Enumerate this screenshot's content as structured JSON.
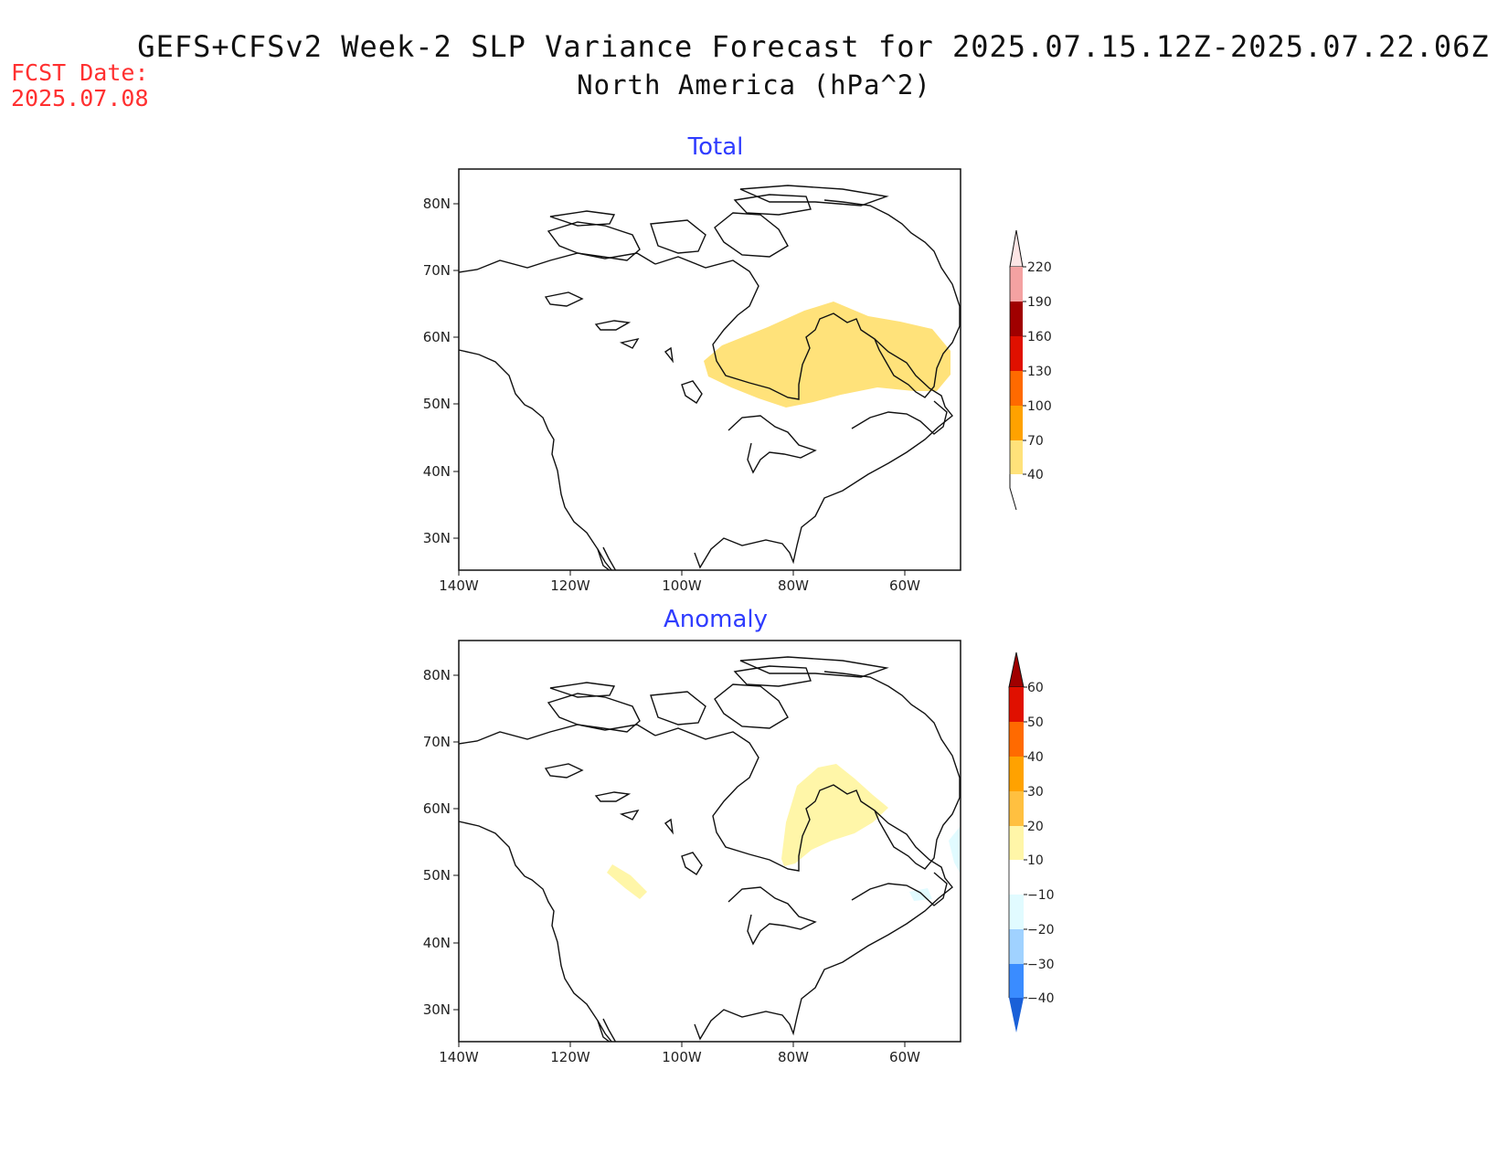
{
  "title": "GEFS+CFSv2 Week-2 SLP Variance Forecast for 2025.07.15.12Z-2025.07.22.06Z",
  "subtitle": "North America (hPa^2)",
  "fcst_label": "FCST Date:",
  "fcst_date": "2025.07.08",
  "panels": [
    {
      "title": "Total",
      "lat_ticks": [
        "80N",
        "70N",
        "60N",
        "50N",
        "40N",
        "30N"
      ],
      "lon_ticks": [
        "140W",
        "120W",
        "100W",
        "80W",
        "60W"
      ],
      "colorbar": {
        "labels": [
          "220",
          "190",
          "160",
          "130",
          "100",
          "70",
          "40"
        ],
        "colors": [
          "#fde5e5",
          "#f4a2a2",
          "#a00000",
          "#e01000",
          "#ff6a00",
          "#ffa200",
          "#ffe27a"
        ]
      },
      "shaded_region": "yellow 40-70 hPa^2 over Hudson Bay / Quebec / Labrador"
    },
    {
      "title": "Anomaly",
      "lat_ticks": [
        "80N",
        "70N",
        "60N",
        "50N",
        "40N",
        "30N"
      ],
      "lon_ticks": [
        "140W",
        "120W",
        "100W",
        "80W",
        "60W"
      ],
      "colorbar": {
        "labels": [
          "60",
          "50",
          "40",
          "30",
          "20",
          "10",
          "−10",
          "−20",
          "−30",
          "−40"
        ],
        "colors": [
          "#a00000",
          "#e01000",
          "#ff6a00",
          "#ffa200",
          "#ffc040",
          "#fff6a8",
          "#ffffff",
          "#e1fbff",
          "#a0d2ff",
          "#3a8cff",
          "#1a60d8"
        ]
      },
      "shaded_region": "light yellow 10-20 over Hudson Bay / Quebec; light cyan near Newfoundland"
    }
  ],
  "colors": {
    "title_blue": "#2f3cff",
    "fcst_red": "#ff3030"
  }
}
